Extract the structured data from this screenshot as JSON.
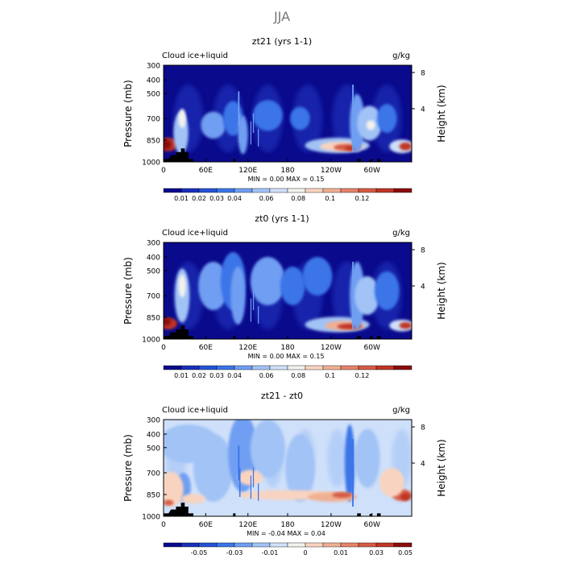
{
  "figure_title": "JJA",
  "colormap": [
    "#0a0a8c",
    "#1a2fb8",
    "#2552d6",
    "#3a75e8",
    "#6f9ef2",
    "#a2c3f6",
    "#cfe0fa",
    "#f3f1ee",
    "#f8d4c0",
    "#f0b093",
    "#e5836a",
    "#d65b44",
    "#bf3626",
    "#8a0d0d"
  ],
  "chart_data": [
    {
      "type": "heatmap",
      "title": "zt21 (yrs 1-1)",
      "left_label": "Cloud ice+liquid",
      "units": "g/kg",
      "ylabel": "Pressure (mb)",
      "ylabel_right": "Height (km)",
      "yticks": [
        "300",
        "400",
        "500",
        "700",
        "850",
        "1000"
      ],
      "yticks_right": [
        "8",
        "4"
      ],
      "xticks": [
        "0",
        "60E",
        "120E",
        "180",
        "120W",
        "60W"
      ],
      "stats": "MIN =    0.00   MAX =    0.15",
      "colorbar_labels": [
        "0.01",
        "0.02",
        "0.03",
        "0.04",
        "0.06",
        "0.08",
        "0.1",
        "0.12"
      ],
      "field": "mean",
      "grid": false
    },
    {
      "type": "heatmap",
      "title": "zt0 (yrs 1-1)",
      "left_label": "Cloud ice+liquid",
      "units": "g/kg",
      "ylabel": "Pressure (mb)",
      "ylabel_right": "Height (km)",
      "yticks": [
        "300",
        "400",
        "500",
        "700",
        "850",
        "1000"
      ],
      "yticks_right": [
        "8",
        "4"
      ],
      "xticks": [
        "0",
        "60E",
        "120E",
        "180",
        "120W",
        "60W"
      ],
      "stats": "MIN =    0.00   MAX =    0.15",
      "colorbar_labels": [
        "0.01",
        "0.02",
        "0.03",
        "0.04",
        "0.06",
        "0.08",
        "0.1",
        "0.12"
      ],
      "field": "mean",
      "grid": false
    },
    {
      "type": "heatmap",
      "title": "zt21 - zt0",
      "left_label": "Cloud ice+liquid",
      "units": "g/kg",
      "ylabel": "Pressure (mb)",
      "ylabel_right": "Height (km)",
      "yticks": [
        "300",
        "400",
        "500",
        "700",
        "850",
        "1000"
      ],
      "yticks_right": [
        "8",
        "4"
      ],
      "xticks": [
        "0",
        "60E",
        "120E",
        "180",
        "120W",
        "60W"
      ],
      "stats": "MIN =   -0.04   MAX =    0.04",
      "colorbar_labels": [
        "-0.05",
        "-0.03",
        "-0.01",
        "0",
        "0.01",
        "0.03",
        "0.05"
      ],
      "field": "diff",
      "grid": false
    }
  ]
}
